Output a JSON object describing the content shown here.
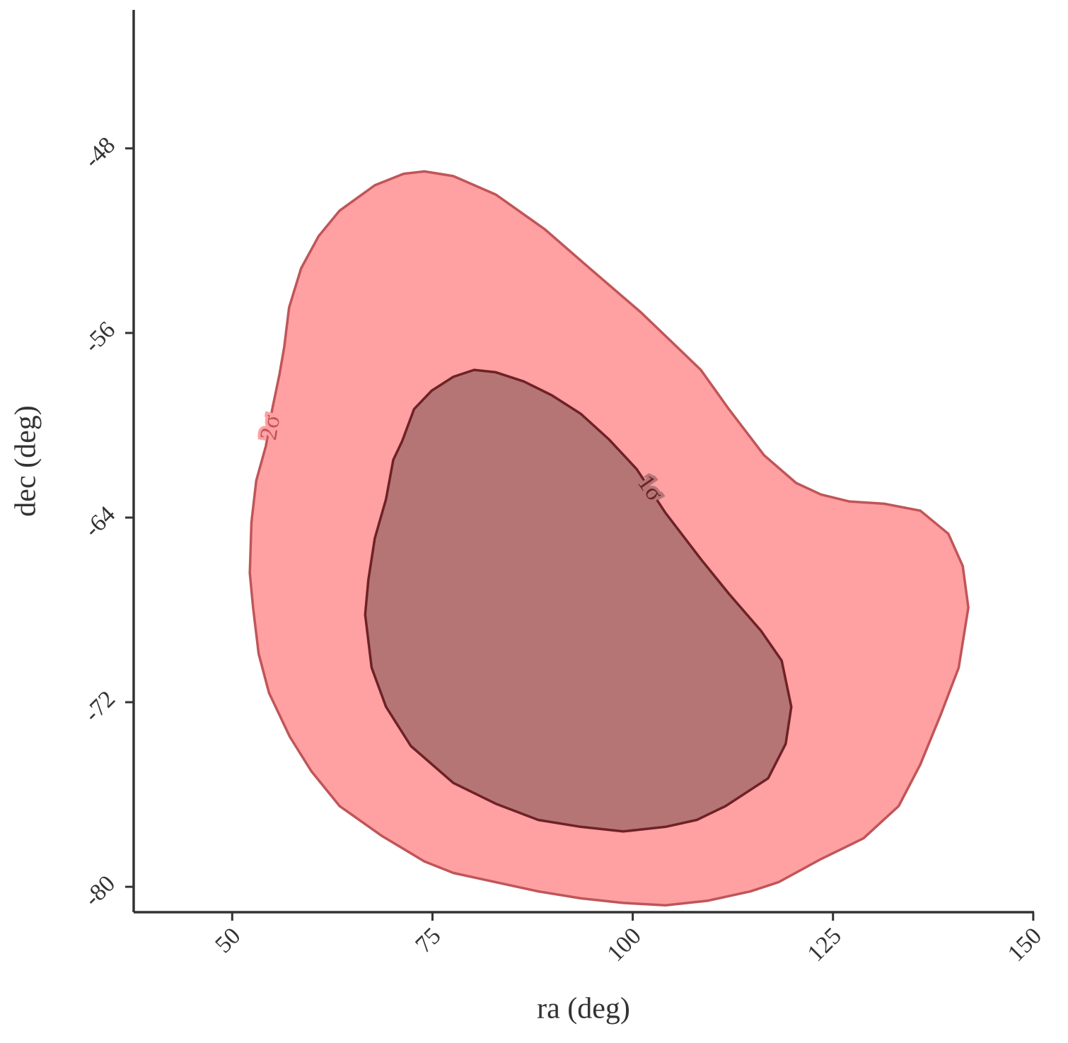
{
  "chart_data": {
    "type": "contour",
    "xlabel": "ra (deg)",
    "ylabel": "dec (deg)",
    "xlim": [
      37.7,
      150.1
    ],
    "ylim": [
      -81.1,
      -42.0
    ],
    "xticks": [
      50,
      75,
      100,
      125,
      150
    ],
    "yticks": [
      -80,
      -72,
      -64,
      -56,
      -48
    ],
    "series": [
      {
        "name": "2σ",
        "color": "#ffa0a2",
        "edgecolor": "#c05558",
        "x": [
          74.0,
          77.6,
          82.9,
          89.0,
          94.3,
          101.0,
          104.9,
          108.5,
          112.0,
          116.4,
          120.4,
          123.5,
          127.0,
          131.4,
          135.9,
          139.4,
          141.2,
          141.9,
          140.7,
          138.5,
          135.9,
          133.2,
          128.8,
          123.5,
          118.2,
          114.7,
          109.4,
          104.1,
          98.8,
          93.5,
          88.2,
          82.9,
          77.6,
          74.0,
          68.7,
          63.4,
          59.9,
          57.2,
          54.6,
          53.3,
          52.6,
          52.2,
          52.4,
          53.0,
          54.2,
          55.0,
          55.9,
          56.5,
          57.1,
          58.6,
          60.8,
          63.4,
          67.8,
          71.4
        ],
        "y": [
          -49.0,
          -49.2,
          -50.0,
          -51.5,
          -53.1,
          -55.1,
          -56.4,
          -57.6,
          -59.3,
          -61.3,
          -62.5,
          -63.0,
          -63.3,
          -63.4,
          -63.7,
          -64.7,
          -66.1,
          -67.9,
          -70.5,
          -72.5,
          -74.7,
          -76.5,
          -77.9,
          -78.8,
          -79.8,
          -80.2,
          -80.6,
          -80.8,
          -80.7,
          -80.5,
          -80.2,
          -79.8,
          -79.4,
          -78.9,
          -77.8,
          -76.5,
          -75.0,
          -73.5,
          -71.6,
          -69.9,
          -67.9,
          -66.4,
          -64.2,
          -62.4,
          -60.9,
          -59.3,
          -57.8,
          -56.6,
          -54.9,
          -53.2,
          -51.8,
          -50.7,
          -49.6,
          -49.1
        ]
      },
      {
        "name": "1σ",
        "color": "#b57575",
        "edgecolor": "#6e2226",
        "x": [
          80.2,
          82.9,
          86.4,
          89.9,
          93.5,
          97.0,
          100.5,
          104.1,
          108.5,
          112.0,
          116.0,
          118.6,
          119.8,
          119.1,
          116.9,
          111.6,
          108.0,
          104.1,
          98.8,
          93.5,
          88.2,
          82.9,
          77.6,
          72.3,
          69.2,
          67.4,
          66.6,
          67.0,
          67.8,
          69.2,
          70.1,
          71.2,
          72.7,
          74.9,
          77.6
        ],
        "y": [
          -57.6,
          -57.7,
          -58.1,
          -58.7,
          -59.5,
          -60.6,
          -61.9,
          -63.8,
          -65.8,
          -67.3,
          -68.9,
          -70.2,
          -72.2,
          -73.8,
          -75.3,
          -76.5,
          -77.1,
          -77.4,
          -77.6,
          -77.4,
          -77.1,
          -76.4,
          -75.5,
          -73.9,
          -72.2,
          -70.5,
          -68.2,
          -66.7,
          -64.9,
          -63.2,
          -61.5,
          -60.7,
          -59.3,
          -58.5,
          -57.9
        ]
      }
    ]
  }
}
